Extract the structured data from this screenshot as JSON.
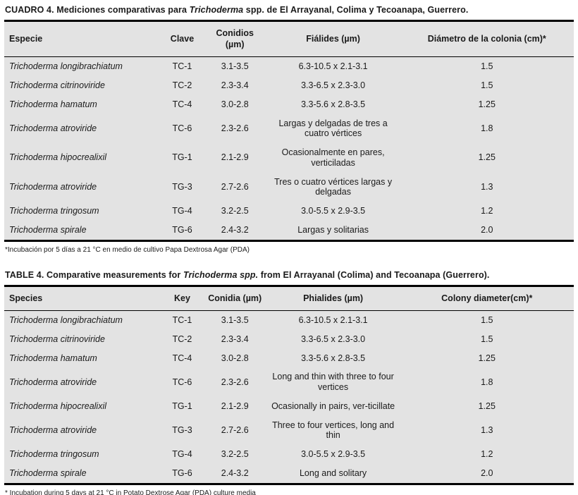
{
  "tables": [
    {
      "title": {
        "prefix": "CUADRO 4. Mediciones comparativas para ",
        "italic": "Trichoderma",
        "suffix": " spp. de El Arrayanal, Colima y Tecoanapa, Guerrero."
      },
      "headers": {
        "species": "Especie",
        "key": "Clave",
        "conidia": "Conidios (µm)",
        "phialides": "Fiálides (µm)",
        "diameter": "Diámetro de la colonia (cm)*"
      },
      "rows": [
        {
          "species": "Trichoderma longibrachiatum",
          "key": "TC-1",
          "conidia": "3.1-3.5",
          "phialides": "6.3-10.5 x 2.1-3.1",
          "diameter": "1.5"
        },
        {
          "species": "Trichoderma citrinoviride",
          "key": "TC-2",
          "conidia": "2.3-3.4",
          "phialides": "3.3-6.5 x 2.3-3.0",
          "diameter": "1.5"
        },
        {
          "species": "Trichoderma hamatum",
          "key": "TC-4",
          "conidia": "3.0-2.8",
          "phialides": "3.3-5.6 x 2.8-3.5",
          "diameter": "1.25"
        },
        {
          "species": "Trichoderma atroviride",
          "key": "TC-6",
          "conidia": "2.3-2.6",
          "phialides": "Largas y delgadas de tres a cuatro vértices",
          "diameter": "1.8"
        },
        {
          "species": "Trichoderma hipocrealixil",
          "key": "TG-1",
          "conidia": "2.1-2.9",
          "phialides": "Ocasionalmente en pares, verticiladas",
          "diameter": "1.25"
        },
        {
          "species": "Trichoderma atroviride",
          "key": "TG-3",
          "conidia": "2.7-2.6",
          "phialides": "Tres o cuatro vértices largas y delgadas",
          "diameter": "1.3"
        },
        {
          "species": "Trichoderma tringosum",
          "key": "TG-4",
          "conidia": "3.2-2.5",
          "phialides": "3.0-5.5 x 2.9-3.5",
          "diameter": "1.2"
        },
        {
          "species": "Trichoderma spirale",
          "key": "TG-6",
          "conidia": "2.4-3.2",
          "phialides": "Largas y solitarias",
          "diameter": "2.0"
        }
      ],
      "footnote": "*Incubación por 5 días a 21 °C en medio de cultivo Papa Dextrosa Agar (PDA)"
    },
    {
      "title": {
        "prefix": "TABLE 4. Comparative measurements for ",
        "italic": "Trichoderma spp.",
        "suffix": " from El Arrayanal (Colima) and Tecoanapa (Guerrero)."
      },
      "headers": {
        "species": "Species",
        "key": "Key",
        "conidia": "Conidia (µm)",
        "phialides": "Phialides (µm)",
        "diameter": "Colony diameter(cm)*"
      },
      "rows": [
        {
          "species": "Trichoderma longibrachiatum",
          "key": "TC-1",
          "conidia": "3.1-3.5",
          "phialides": "6.3-10.5 x 2.1-3.1",
          "diameter": "1.5"
        },
        {
          "species": "Trichoderma citrinoviride",
          "key": "TC-2",
          "conidia": "2.3-3.4",
          "phialides": "3.3-6.5 x 2.3-3.0",
          "diameter": "1.5"
        },
        {
          "species": "Trichoderma hamatum",
          "key": "TC-4",
          "conidia": "3.0-2.8",
          "phialides": "3.3-5.6 x 2.8-3.5",
          "diameter": "1.25"
        },
        {
          "species": "Trichoderma atroviride",
          "key": "TC-6",
          "conidia": "2.3-2.6",
          "phialides": "Long and thin with three to four vertices",
          "diameter": "1.8"
        },
        {
          "species": "Trichoderma hipocrealixil",
          "key": "TG-1",
          "conidia": "2.1-2.9",
          "phialides": "Ocasionally in pairs, ver-ticillate",
          "diameter": "1.25"
        },
        {
          "species": "Trichoderma atroviride",
          "key": "TG-3",
          "conidia": "2.7-2.6",
          "phialides": "Three to four vertices, long and thin",
          "diameter": "1.3"
        },
        {
          "species": "Trichoderma tringosum",
          "key": "TG-4",
          "conidia": "3.2-2.5",
          "phialides": "3.0-5.5 x 2.9-3.5",
          "diameter": "1.2"
        },
        {
          "species": "Trichoderma spirale",
          "key": "TG-6",
          "conidia": "2.4-3.2",
          "phialides": "Long and solitary",
          "diameter": "2.0"
        }
      ],
      "footnote": "* Incubation during 5 days at 21 °C in Potato Dextrose Agar (PDA) culture media"
    }
  ]
}
